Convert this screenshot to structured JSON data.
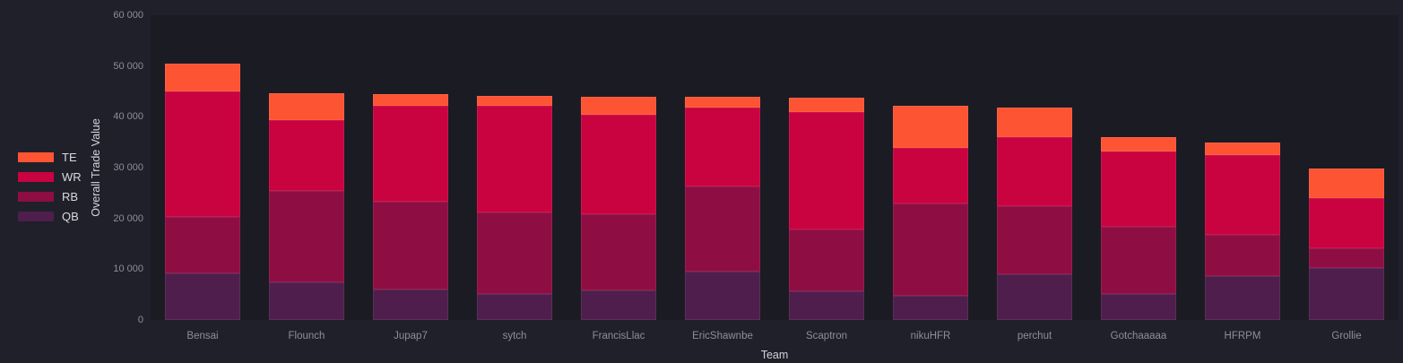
{
  "chart_data": {
    "type": "bar",
    "stacked": true,
    "title": "",
    "xlabel": "Team",
    "ylabel": "Overall Trade Value",
    "ylim": [
      0,
      60000
    ],
    "ytick_values": [
      0,
      10000,
      20000,
      30000,
      40000,
      50000,
      60000
    ],
    "ytick_labels": [
      "0",
      "10 000",
      "20 000",
      "30 000",
      "40 000",
      "50 000",
      "60 000"
    ],
    "grid": false,
    "legend_position": "left",
    "legend_order": [
      "TE",
      "WR",
      "RB",
      "QB"
    ],
    "categories": [
      "Bensai",
      "Flounch",
      "Jupap7",
      "sytch",
      "FrancisLlac",
      "EricShawnbe",
      "Scaptron",
      "nikuHFR",
      "perchut",
      "Gotchaaaaa",
      "HFRPM",
      "Grollie"
    ],
    "series": [
      {
        "name": "QB",
        "color": "#4f1e4c",
        "values": [
          9100,
          7400,
          6000,
          5100,
          5900,
          9600,
          5600,
          4800,
          9000,
          5200,
          8600,
          10200
        ]
      },
      {
        "name": "RB",
        "color": "#8e0e43",
        "values": [
          11200,
          18100,
          17300,
          16000,
          14900,
          16700,
          12300,
          18200,
          13500,
          13200,
          8200,
          4000
        ]
      },
      {
        "name": "WR",
        "color": "#c90340",
        "values": [
          24700,
          13800,
          18900,
          21000,
          19600,
          15500,
          23100,
          10900,
          13500,
          14700,
          15600,
          9800
        ]
      },
      {
        "name": "TE",
        "color": "#fd5433",
        "values": [
          5500,
          5300,
          2200,
          2100,
          3600,
          2100,
          2700,
          8300,
          5900,
          2900,
          2500,
          5900
        ]
      }
    ],
    "totals": [
      50500,
      44600,
      44400,
      44200,
      44000,
      43900,
      43700,
      42200,
      41900,
      36000,
      34900,
      29900
    ]
  },
  "colors": {
    "page_background": "#20202a",
    "plot_background": "#1b1b24",
    "tick_text": "#8e8e97",
    "title_text": "#d2d2d9",
    "legend_text": "#d9d9df"
  }
}
